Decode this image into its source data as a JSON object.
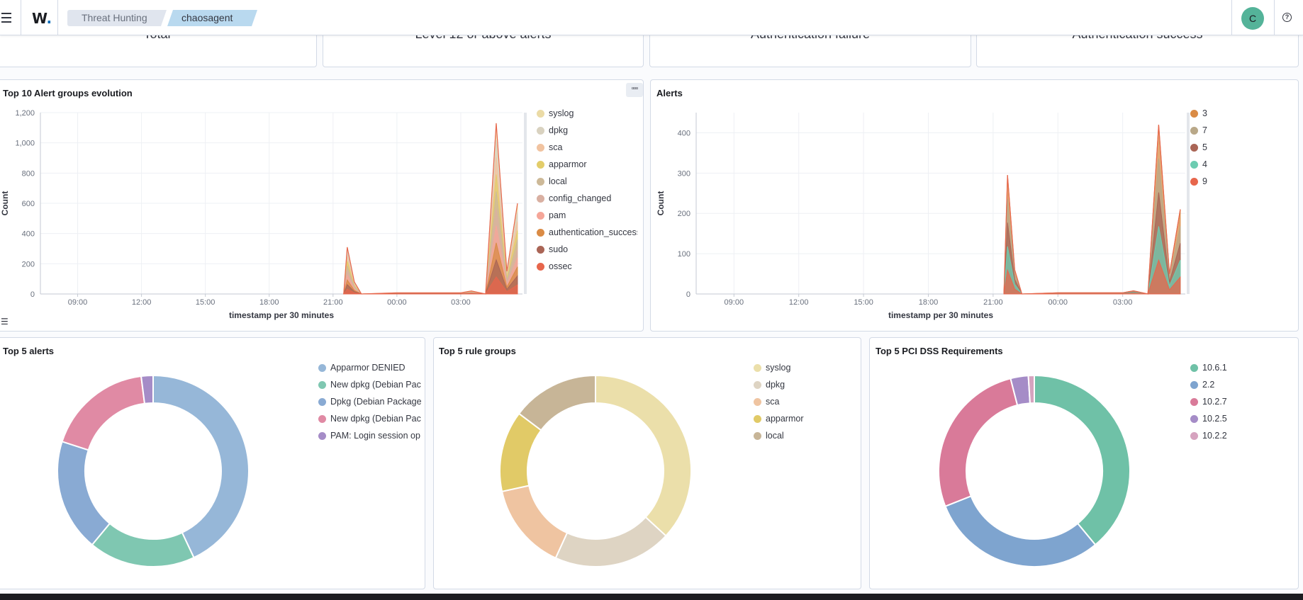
{
  "header": {
    "logo_text": "W",
    "logo_dot": ".",
    "breadcrumbs": [
      "Threat Hunting",
      "chaosagent"
    ],
    "avatar_initial": "C",
    "help_glyph": "?"
  },
  "metrics": [
    "Total",
    "Level 12 or above alerts",
    "Authentication failure",
    "Authentication success"
  ],
  "alert_groups_panel": {
    "title": "Top 10 Alert groups evolution",
    "options_glyph": "▫▫▫",
    "legend_icon": "list-icon",
    "chart_data": {
      "type": "area",
      "stacked": true,
      "x_ticks": [
        "09:00",
        "12:00",
        "15:00",
        "18:00",
        "21:00",
        "00:00",
        "03:00"
      ],
      "y_ticks": [
        "0",
        "200",
        "400",
        "600",
        "800",
        "1,000",
        "1,200"
      ],
      "ylim": [
        0,
        1200
      ],
      "xlabel": "timestamp per 30 minutes",
      "ylabel": "Count",
      "legend_position": "right",
      "series": [
        {
          "name": "syslog",
          "color": "#ebdba6"
        },
        {
          "name": "dpkg",
          "color": "#d9d2c0"
        },
        {
          "name": "sca",
          "color": "#f1c3a0"
        },
        {
          "name": "apparmor",
          "color": "#e3cd6a"
        },
        {
          "name": "local",
          "color": "#cdb998"
        },
        {
          "name": "config_changed",
          "color": "#d9b0a2"
        },
        {
          "name": "pam",
          "color": "#f5a699"
        },
        {
          "name": "authentication_success",
          "color": "#da8b45"
        },
        {
          "name": "sudo",
          "color": "#aa6556"
        },
        {
          "name": "ossec",
          "color": "#e7664c"
        }
      ],
      "total": [
        {
          "t": "21:30",
          "v": 0
        },
        {
          "t": "21:40",
          "v": 310
        },
        {
          "t": "22:00",
          "v": 80
        },
        {
          "t": "22:20",
          "v": 0
        },
        {
          "t": "00:00",
          "v": 8
        },
        {
          "t": "03:00",
          "v": 8
        },
        {
          "t": "03:30",
          "v": 20
        },
        {
          "t": "04:10",
          "v": 0
        },
        {
          "t": "04:40",
          "v": 1130
        },
        {
          "t": "05:10",
          "v": 150
        },
        {
          "t": "05:40",
          "v": 600
        }
      ]
    }
  },
  "alerts_panel": {
    "title": "Alerts",
    "chart_data": {
      "type": "area",
      "stacked": true,
      "x_ticks": [
        "09:00",
        "12:00",
        "15:00",
        "18:00",
        "21:00",
        "00:00",
        "03:00"
      ],
      "y_ticks": [
        "0",
        "100",
        "200",
        "300",
        "400"
      ],
      "ylim": [
        0,
        450
      ],
      "xlabel": "timestamp per 30 minutes",
      "ylabel": "Count",
      "legend_position": "right",
      "series": [
        {
          "name": "3",
          "color": "#da8b45"
        },
        {
          "name": "7",
          "color": "#b9a888"
        },
        {
          "name": "5",
          "color": "#aa6556"
        },
        {
          "name": "4",
          "color": "#6dccb1"
        },
        {
          "name": "9",
          "color": "#e7664c"
        }
      ],
      "total": [
        {
          "t": "21:30",
          "v": 0
        },
        {
          "t": "21:40",
          "v": 295
        },
        {
          "t": "22:00",
          "v": 60
        },
        {
          "t": "22:20",
          "v": 0
        },
        {
          "t": "00:00",
          "v": 3
        },
        {
          "t": "03:00",
          "v": 3
        },
        {
          "t": "03:30",
          "v": 8
        },
        {
          "t": "04:10",
          "v": 0
        },
        {
          "t": "04:40",
          "v": 420
        },
        {
          "t": "05:10",
          "v": 50
        },
        {
          "t": "05:40",
          "v": 210
        }
      ]
    }
  },
  "donuts": [
    {
      "title": "Top 5 alerts",
      "chart_data": {
        "type": "pie",
        "donut": true,
        "legend_position": "right",
        "slices": [
          {
            "label": "Apparmor DENIED",
            "value": 43,
            "color": "#96b7d8"
          },
          {
            "label": "New dpkg (Debian Pac",
            "value": 18,
            "color": "#7fc7b1"
          },
          {
            "label": "Dpkg (Debian Package",
            "value": 19,
            "color": "#89aad3"
          },
          {
            "label": "New dpkg (Debian Pac",
            "value": 18,
            "color": "#e08aa4"
          },
          {
            "label": "PAM: Login session op",
            "value": 2,
            "color": "#a58cc7"
          }
        ]
      }
    },
    {
      "title": "Top 5 rule groups",
      "chart_data": {
        "type": "pie",
        "donut": true,
        "legend_position": "right",
        "slices": [
          {
            "label": "syslog",
            "value": 35,
            "color": "#ebdfaa"
          },
          {
            "label": "dpkg",
            "value": 19,
            "color": "#ded4c3"
          },
          {
            "label": "sca",
            "value": 14,
            "color": "#efc4a1"
          },
          {
            "label": "apparmor",
            "value": 13,
            "color": "#e1ca67"
          },
          {
            "label": "local",
            "value": 14,
            "color": "#c7b597"
          }
        ]
      }
    },
    {
      "title": "Top 5 PCI DSS Requirements",
      "chart_data": {
        "type": "pie",
        "donut": true,
        "legend_position": "right",
        "slices": [
          {
            "label": "10.6.1",
            "value": 39,
            "color": "#6fc1a7"
          },
          {
            "label": "2.2",
            "value": 30,
            "color": "#7ea4cf"
          },
          {
            "label": "10.2.7",
            "value": 27,
            "color": "#d97a99"
          },
          {
            "label": "10.2.5",
            "value": 3,
            "color": "#a58cc7"
          },
          {
            "label": "10.2.2",
            "value": 1,
            "color": "#d6a3bf"
          }
        ]
      }
    }
  ]
}
